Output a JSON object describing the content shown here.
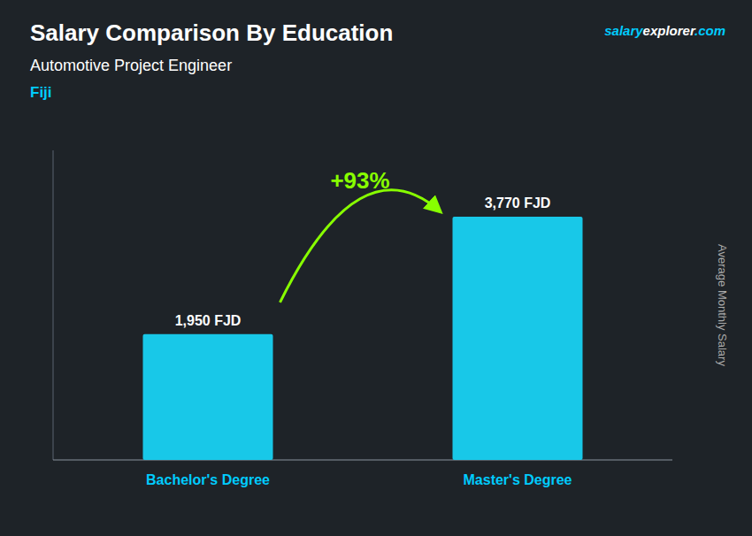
{
  "chart_data": {
    "type": "bar",
    "title": "Salary Comparison By Education",
    "subtitle": "Automotive Project Engineer",
    "annotations": [
      {
        "text": "Fiji",
        "color": "#00CCFF"
      },
      {
        "text": "+93%",
        "color": "#88FF00"
      }
    ],
    "site_label": [
      {
        "text": "salary",
        "color": "#00CCFF"
      },
      {
        "text": "explorer",
        "color": "#FFFFFF"
      },
      {
        "text": ".com",
        "color": "#00CCFF"
      }
    ],
    "ylabel": "Average Monthly Salary",
    "categories": [
      "Bachelor's Degree",
      "Master's Degree"
    ],
    "values": [
      1950,
      3770
    ],
    "value_labels": [
      "1,950 FJD",
      "3,770 FJD"
    ],
    "data_labels": true,
    "color": "#18C8E8",
    "ylim": [
      0,
      4800
    ],
    "tick_labels": "x"
  }
}
